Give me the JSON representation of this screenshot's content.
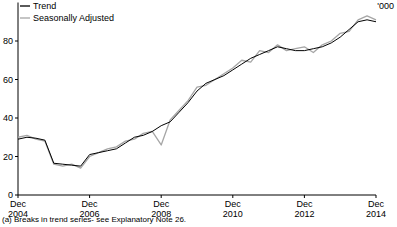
{
  "chart_data": {
    "type": "line",
    "ylabel": "'000",
    "footnote": "(a) Breaks in trend series- see Explanatory Note 26.",
    "categories": [
      "Dec 2004",
      null,
      null,
      null,
      null,
      null,
      null,
      null,
      "Dec 2006",
      null,
      null,
      null,
      null,
      null,
      null,
      null,
      "Dec 2008",
      null,
      null,
      null,
      null,
      null,
      null,
      null,
      "Dec 2010",
      null,
      null,
      null,
      null,
      null,
      null,
      null,
      "Dec 2012",
      null,
      null,
      null,
      null,
      null,
      null,
      null,
      "Dec 2014"
    ],
    "series": [
      {
        "name": "Trend",
        "color": "#000000",
        "values": [
          29,
          30,
          29.5,
          28.5,
          16.5,
          16,
          15.5,
          15,
          21,
          22,
          23,
          24,
          27,
          30,
          31,
          33,
          36,
          38,
          43,
          48,
          54,
          58,
          60,
          62,
          65,
          68,
          71,
          73,
          75,
          77,
          76,
          75,
          75,
          76,
          77,
          79,
          82,
          86,
          90,
          91,
          90
        ]
      },
      {
        "name": "Seasonally Adjusted",
        "color": "#a6a6a6",
        "values": [
          30,
          31,
          29,
          28,
          16,
          15,
          16,
          14,
          20,
          22,
          24,
          25,
          28,
          29,
          32,
          33,
          26,
          39,
          44,
          49,
          56,
          57,
          60,
          63,
          66,
          70,
          69,
          75,
          74,
          78,
          75,
          76,
          77,
          74,
          78,
          80,
          84,
          85,
          91,
          93,
          91
        ]
      }
    ],
    "ylim": [
      0,
      100
    ],
    "yticks": [
      0,
      20,
      40,
      60,
      80
    ],
    "legend": "top-left"
  }
}
